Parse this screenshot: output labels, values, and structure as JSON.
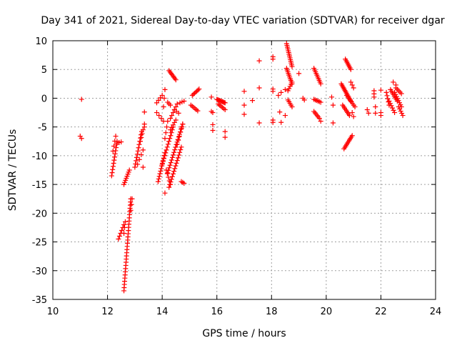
{
  "chart_data": {
    "type": "scatter",
    "title": "Day 341 of 2021, Sidereal Day-to-day VTEC variation (SDTVAR) for receiver dgar",
    "xlabel": "GPS time / hours",
    "ylabel": "SDTVAR / TECUs",
    "xlim": [
      10,
      24
    ],
    "ylim": [
      -35,
      10
    ],
    "xticks": [
      10,
      12,
      14,
      16,
      18,
      20,
      22,
      24
    ],
    "yticks": [
      10,
      5,
      0,
      -5,
      -10,
      -15,
      -20,
      -25,
      -30,
      -35
    ],
    "grid": true,
    "marker": "+",
    "color": "#ff0000",
    "segments": [
      {
        "x0": 11.05,
        "y0": -0.2,
        "x1": 11.05,
        "y1": -0.2,
        "n": 1
      },
      {
        "x0": 11.0,
        "y0": -6.6,
        "x1": 11.05,
        "y1": -7.0,
        "n": 2
      },
      {
        "x0": 12.15,
        "y0": -13.5,
        "x1": 12.35,
        "y1": -7.5,
        "n": 12
      },
      {
        "x0": 12.2,
        "y0": -9.2,
        "x1": 12.3,
        "y1": -6.6,
        "n": 4
      },
      {
        "x0": 12.35,
        "y0": -7.8,
        "x1": 12.5,
        "y1": -7.6,
        "n": 3
      },
      {
        "x0": 12.4,
        "y0": -24.5,
        "x1": 12.6,
        "y1": -22.0,
        "n": 6
      },
      {
        "x0": 12.6,
        "y0": -23.5,
        "x1": 12.65,
        "y1": -21.5,
        "n": 3
      },
      {
        "x0": 12.6,
        "y0": -15.0,
        "x1": 12.8,
        "y1": -12.5,
        "n": 8
      },
      {
        "x0": 12.6,
        "y0": -33.5,
        "x1": 12.85,
        "y1": -17.5,
        "n": 30
      },
      {
        "x0": 12.85,
        "y0": -19.5,
        "x1": 12.9,
        "y1": -17.5,
        "n": 3
      },
      {
        "x0": 13.0,
        "y0": -12.0,
        "x1": 13.25,
        "y1": -5.8,
        "n": 12
      },
      {
        "x0": 13.1,
        "y0": -11.5,
        "x1": 13.3,
        "y1": -9.0,
        "n": 4
      },
      {
        "x0": 13.2,
        "y0": -7.5,
        "x1": 13.3,
        "y1": -5.5,
        "n": 4
      },
      {
        "x0": 13.3,
        "y0": -12.0,
        "x1": 13.3,
        "y1": -12.0,
        "n": 1
      },
      {
        "x0": 13.35,
        "y0": -2.4,
        "x1": 13.35,
        "y1": -2.4,
        "n": 1
      },
      {
        "x0": 13.35,
        "y0": -4.5,
        "x1": 13.35,
        "y1": -5.0,
        "n": 2
      },
      {
        "x0": 13.8,
        "y0": -0.8,
        "x1": 14.0,
        "y1": 0.5,
        "n": 4
      },
      {
        "x0": 13.8,
        "y0": -2.5,
        "x1": 14.05,
        "y1": -4.0,
        "n": 4
      },
      {
        "x0": 13.85,
        "y0": -14.5,
        "x1": 14.1,
        "y1": -9.5,
        "n": 12
      },
      {
        "x0": 14.0,
        "y0": -11.5,
        "x1": 14.4,
        "y1": -5.0,
        "n": 14
      },
      {
        "x0": 14.05,
        "y0": -1.5,
        "x1": 14.1,
        "y1": 1.5,
        "n": 3
      },
      {
        "x0": 14.1,
        "y0": -7.0,
        "x1": 14.2,
        "y1": -4.0,
        "n": 4
      },
      {
        "x0": 14.1,
        "y0": -16.5,
        "x1": 14.1,
        "y1": -16.5,
        "n": 1
      },
      {
        "x0": 14.15,
        "y0": -12.5,
        "x1": 14.3,
        "y1": -15.0,
        "n": 5
      },
      {
        "x0": 14.2,
        "y0": -0.7,
        "x1": 14.3,
        "y1": -1.2,
        "n": 3
      },
      {
        "x0": 14.2,
        "y0": -13.0,
        "x1": 14.75,
        "y1": -4.5,
        "n": 20
      },
      {
        "x0": 14.25,
        "y0": -15.5,
        "x1": 14.7,
        "y1": -8.5,
        "n": 16
      },
      {
        "x0": 14.25,
        "y0": 4.8,
        "x1": 14.5,
        "y1": 3.2,
        "n": 8
      },
      {
        "x0": 14.3,
        "y0": -3.5,
        "x1": 14.55,
        "y1": -1.0,
        "n": 6
      },
      {
        "x0": 14.3,
        "y0": -5.5,
        "x1": 14.5,
        "y1": -3.8,
        "n": 5
      },
      {
        "x0": 14.45,
        "y0": -2.0,
        "x1": 14.6,
        "y1": -2.6,
        "n": 3
      },
      {
        "x0": 14.55,
        "y0": -8.0,
        "x1": 14.75,
        "y1": -4.5,
        "n": 6
      },
      {
        "x0": 14.65,
        "y0": -0.8,
        "x1": 14.8,
        "y1": -0.5,
        "n": 3
      },
      {
        "x0": 14.7,
        "y0": -14.5,
        "x1": 14.8,
        "y1": -14.8,
        "n": 3
      },
      {
        "x0": 15.05,
        "y0": -1.2,
        "x1": 15.3,
        "y1": -2.2,
        "n": 6
      },
      {
        "x0": 15.1,
        "y0": 0.5,
        "x1": 15.35,
        "y1": 1.6,
        "n": 7
      },
      {
        "x0": 15.8,
        "y0": 0.2,
        "x1": 15.8,
        "y1": 0.2,
        "n": 1
      },
      {
        "x0": 15.8,
        "y0": -2.3,
        "x1": 15.85,
        "y1": -2.5,
        "n": 2
      },
      {
        "x0": 15.85,
        "y0": -4.6,
        "x1": 15.85,
        "y1": -5.6,
        "n": 2
      },
      {
        "x0": 16.0,
        "y0": -0.2,
        "x1": 16.3,
        "y1": -0.8,
        "n": 10
      },
      {
        "x0": 16.05,
        "y0": -1.0,
        "x1": 16.3,
        "y1": -2.0,
        "n": 6
      },
      {
        "x0": 16.3,
        "y0": -5.8,
        "x1": 16.3,
        "y1": -6.8,
        "n": 2
      },
      {
        "x0": 17.0,
        "y0": 1.2,
        "x1": 17.0,
        "y1": 1.2,
        "n": 1
      },
      {
        "x0": 17.0,
        "y0": -1.2,
        "x1": 17.0,
        "y1": -1.2,
        "n": 1
      },
      {
        "x0": 17.0,
        "y0": -2.8,
        "x1": 17.0,
        "y1": -2.8,
        "n": 1
      },
      {
        "x0": 17.3,
        "y0": -0.4,
        "x1": 17.3,
        "y1": -0.4,
        "n": 1
      },
      {
        "x0": 17.55,
        "y0": 6.5,
        "x1": 17.55,
        "y1": 6.5,
        "n": 1
      },
      {
        "x0": 17.55,
        "y0": 1.8,
        "x1": 17.55,
        "y1": 1.8,
        "n": 1
      },
      {
        "x0": 17.55,
        "y0": -4.3,
        "x1": 17.55,
        "y1": -4.3,
        "n": 1
      },
      {
        "x0": 18.05,
        "y0": 7.2,
        "x1": 18.05,
        "y1": 6.8,
        "n": 2
      },
      {
        "x0": 18.05,
        "y0": 1.6,
        "x1": 18.05,
        "y1": 1.2,
        "n": 2
      },
      {
        "x0": 18.05,
        "y0": -3.8,
        "x1": 18.05,
        "y1": -4.2,
        "n": 2
      },
      {
        "x0": 18.25,
        "y0": 0.5,
        "x1": 18.35,
        "y1": 1.0,
        "n": 2
      },
      {
        "x0": 18.3,
        "y0": -2.4,
        "x1": 18.3,
        "y1": -2.4,
        "n": 1
      },
      {
        "x0": 18.35,
        "y0": -4.2,
        "x1": 18.35,
        "y1": -4.2,
        "n": 1
      },
      {
        "x0": 18.55,
        "y0": 9.5,
        "x1": 18.75,
        "y1": 5.5,
        "n": 14
      },
      {
        "x0": 18.55,
        "y0": 5.2,
        "x1": 18.75,
        "y1": 2.5,
        "n": 10
      },
      {
        "x0": 18.6,
        "y0": 1.3,
        "x1": 18.75,
        "y1": 2.8,
        "n": 5
      },
      {
        "x0": 18.6,
        "y0": -0.3,
        "x1": 18.75,
        "y1": -1.5,
        "n": 5
      },
      {
        "x0": 18.5,
        "y0": 1.5,
        "x1": 18.5,
        "y1": 1.5,
        "n": 1
      },
      {
        "x0": 18.5,
        "y0": -3.0,
        "x1": 18.5,
        "y1": -3.0,
        "n": 1
      },
      {
        "x0": 19.0,
        "y0": 4.3,
        "x1": 19.0,
        "y1": 4.3,
        "n": 1
      },
      {
        "x0": 19.15,
        "y0": 0.0,
        "x1": 19.2,
        "y1": -0.3,
        "n": 2
      },
      {
        "x0": 19.55,
        "y0": 5.2,
        "x1": 19.8,
        "y1": 2.5,
        "n": 10
      },
      {
        "x0": 19.55,
        "y0": -2.3,
        "x1": 19.75,
        "y1": -3.5,
        "n": 6
      },
      {
        "x0": 19.55,
        "y0": -0.2,
        "x1": 19.8,
        "y1": -0.7,
        "n": 6
      },
      {
        "x0": 19.8,
        "y0": -4.0,
        "x1": 19.8,
        "y1": -4.0,
        "n": 1
      },
      {
        "x0": 20.2,
        "y0": 0.2,
        "x1": 20.2,
        "y1": 0.2,
        "n": 1
      },
      {
        "x0": 20.25,
        "y0": -1.2,
        "x1": 20.25,
        "y1": -1.2,
        "n": 1
      },
      {
        "x0": 20.25,
        "y0": -4.3,
        "x1": 20.25,
        "y1": -4.3,
        "n": 1
      },
      {
        "x0": 20.55,
        "y0": 2.5,
        "x1": 20.9,
        "y1": -0.5,
        "n": 14
      },
      {
        "x0": 20.6,
        "y0": -1.2,
        "x1": 20.85,
        "y1": -3.0,
        "n": 8
      },
      {
        "x0": 20.65,
        "y0": -8.8,
        "x1": 20.95,
        "y1": -6.5,
        "n": 10
      },
      {
        "x0": 20.7,
        "y0": 6.8,
        "x1": 20.9,
        "y1": 5.0,
        "n": 8
      },
      {
        "x0": 20.75,
        "y0": 0.5,
        "x1": 21.05,
        "y1": -1.5,
        "n": 8
      },
      {
        "x0": 20.9,
        "y0": 2.8,
        "x1": 21.0,
        "y1": 1.8,
        "n": 3
      },
      {
        "x0": 20.95,
        "y0": -2.5,
        "x1": 21.0,
        "y1": -3.2,
        "n": 2
      },
      {
        "x0": 21.5,
        "y0": -2.0,
        "x1": 21.55,
        "y1": -2.6,
        "n": 2
      },
      {
        "x0": 21.75,
        "y0": 1.3,
        "x1": 21.75,
        "y1": 0.2,
        "n": 3
      },
      {
        "x0": 21.8,
        "y0": -1.5,
        "x1": 21.8,
        "y1": -2.6,
        "n": 2
      },
      {
        "x0": 22.0,
        "y0": 1.4,
        "x1": 22.0,
        "y1": 1.4,
        "n": 1
      },
      {
        "x0": 22.0,
        "y0": -2.5,
        "x1": 22.0,
        "y1": -3.0,
        "n": 2
      },
      {
        "x0": 22.2,
        "y0": 1.0,
        "x1": 22.3,
        "y1": -1.2,
        "n": 5
      },
      {
        "x0": 22.3,
        "y0": -0.5,
        "x1": 22.5,
        "y1": -2.5,
        "n": 6
      },
      {
        "x0": 22.35,
        "y0": 1.5,
        "x1": 22.6,
        "y1": -0.5,
        "n": 8
      },
      {
        "x0": 22.45,
        "y0": 2.8,
        "x1": 22.55,
        "y1": 2.3,
        "n": 2
      },
      {
        "x0": 22.5,
        "y0": 1.0,
        "x1": 22.75,
        "y1": -1.5,
        "n": 8
      },
      {
        "x0": 22.55,
        "y0": 1.8,
        "x1": 22.75,
        "y1": 0.8,
        "n": 5
      },
      {
        "x0": 22.65,
        "y0": -1.5,
        "x1": 22.8,
        "y1": -3.0,
        "n": 5
      }
    ]
  }
}
